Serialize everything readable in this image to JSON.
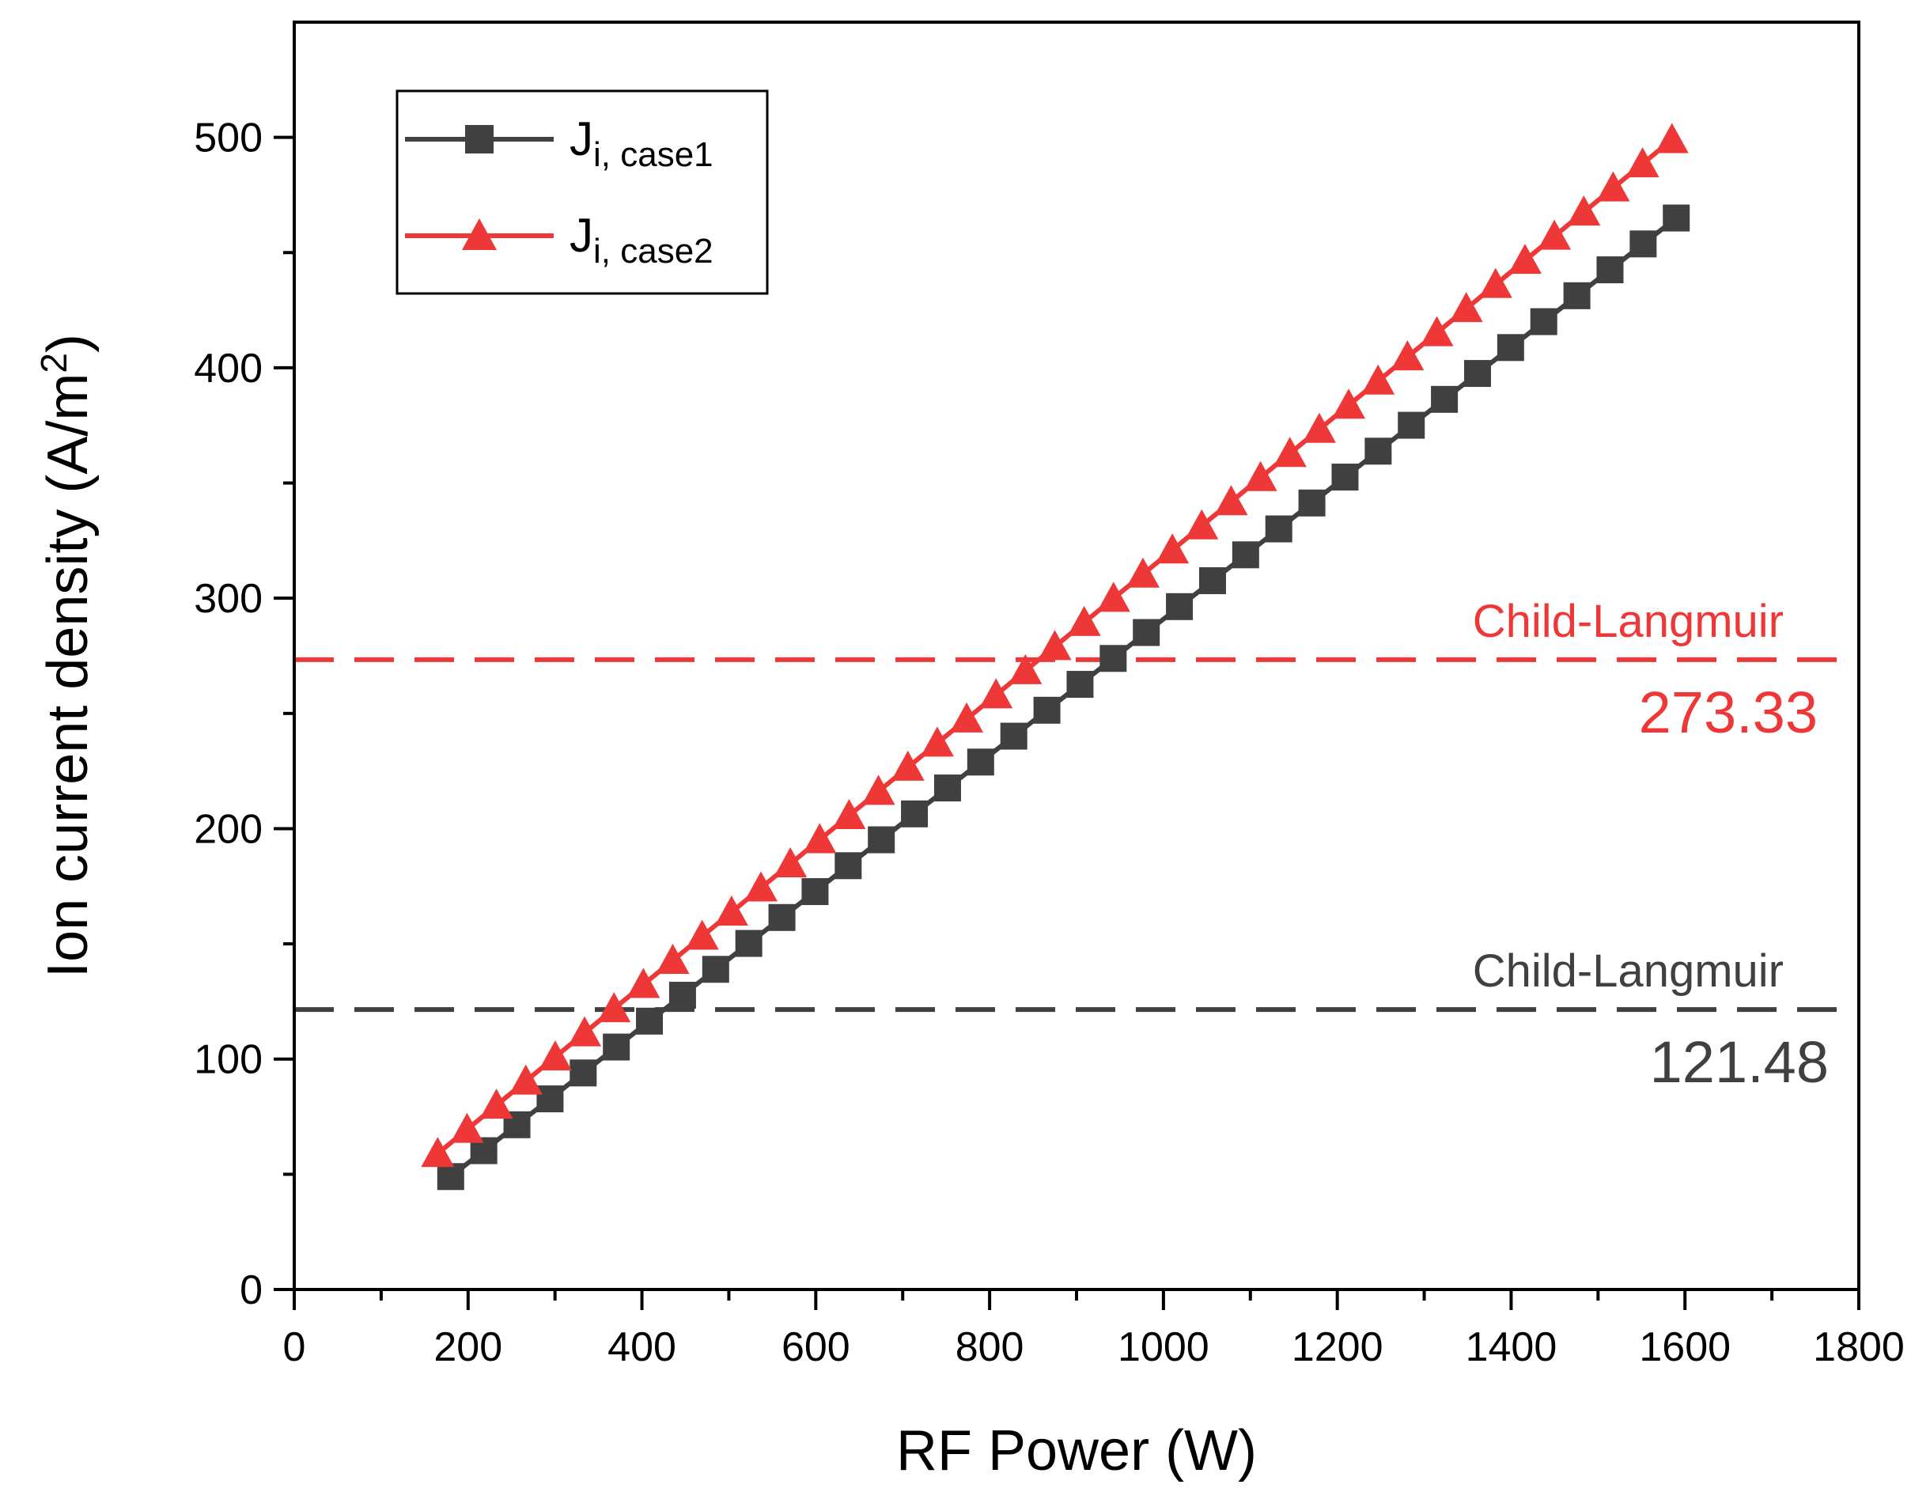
{
  "chart_data": {
    "type": "line",
    "title": "",
    "xlabel": "RF Power (W)",
    "ylabel_main": "Ion current density (A/m",
    "ylabel_sup": "2",
    "ylabel_end": ")",
    "xlim": [
      0,
      1800
    ],
    "ylim": [
      0,
      550
    ],
    "xticks": [
      0,
      200,
      400,
      600,
      800,
      1000,
      1200,
      1400,
      1600,
      1800
    ],
    "yticks": [
      0,
      100,
      200,
      300,
      400,
      500
    ],
    "xtick_labels": [
      "0",
      "200",
      "400",
      "600",
      "800",
      "1000",
      "1200",
      "1400",
      "1600",
      "1800"
    ],
    "ytick_labels": [
      "0",
      "100",
      "200",
      "300",
      "400",
      "500"
    ],
    "legend_position": "top-left",
    "series": [
      {
        "name": "J_i, case1",
        "name_main": "J",
        "name_sub": "i, case1",
        "color": "#404040",
        "marker": "square",
        "x_start": 180,
        "x_end": 1590,
        "y_start": 49,
        "y_end": 465,
        "points": 38
      },
      {
        "name": "J_i, case2",
        "name_main": "J",
        "name_sub": "i, case2",
        "color": "#ee3838",
        "marker": "triangle",
        "x_start": 165,
        "x_end": 1585,
        "y_start": 59,
        "y_end": 499,
        "points": 43
      }
    ],
    "reference_lines": [
      {
        "label": "Child-Langmuir",
        "value_text": "273.33",
        "y": 273.33,
        "color": "#ee3838"
      },
      {
        "label": "Child-Langmuir",
        "value_text": "121.48",
        "y": 121.48,
        "color": "#404040"
      }
    ]
  }
}
